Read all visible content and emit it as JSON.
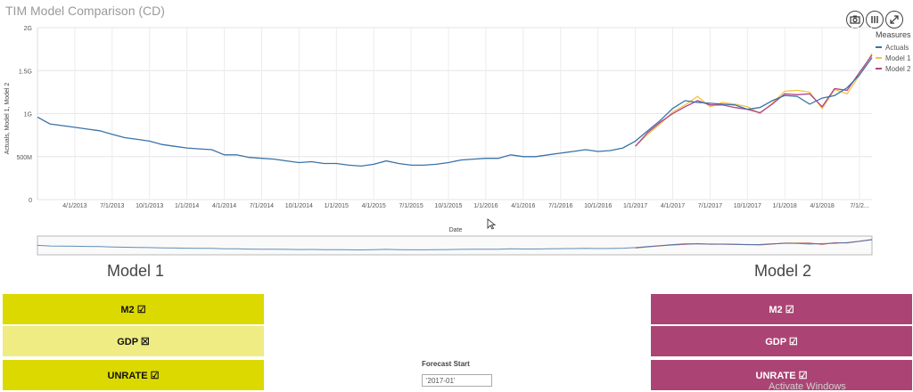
{
  "title": "TIM Model Comparison (CD)",
  "toolbar": {
    "icons": [
      "camera-icon",
      "columns-icon",
      "expand-icon"
    ]
  },
  "legend": {
    "title": "Measures",
    "items": [
      {
        "label": "Actuals",
        "color": "#3a73a8"
      },
      {
        "label": "Model 1",
        "color": "#f2c447"
      },
      {
        "label": "Model 2",
        "color": "#b0458a"
      }
    ]
  },
  "chart_data": {
    "type": "line",
    "title": "TIM Model Comparison (CD)",
    "xlabel": "Date",
    "ylabel": "Actuals, Model 1, Model 2",
    "ylim": [
      0,
      2000000000
    ],
    "yticks": [
      {
        "v": 0,
        "label": "0"
      },
      {
        "v": 500000000,
        "label": "500M"
      },
      {
        "v": 1000000000,
        "label": "1G"
      },
      {
        "v": 1500000000,
        "label": "1.5G"
      },
      {
        "v": 2000000000,
        "label": "2G"
      }
    ],
    "xticks": [
      "4/1/2013",
      "7/1/2013",
      "10/1/2013",
      "1/1/2014",
      "4/1/2014",
      "7/1/2014",
      "10/1/2014",
      "1/1/2015",
      "4/1/2015",
      "7/1/2015",
      "10/1/2015",
      "1/1/2016",
      "4/1/2016",
      "7/1/2016",
      "10/1/2016",
      "1/1/2017",
      "4/1/2017",
      "7/1/2017",
      "10/1/2017",
      "1/1/2018",
      "4/1/2018",
      "7/1/2..."
    ],
    "x": [
      "2013-01",
      "2013-02",
      "2013-03",
      "2013-04",
      "2013-05",
      "2013-06",
      "2013-07",
      "2013-08",
      "2013-09",
      "2013-10",
      "2013-11",
      "2013-12",
      "2014-01",
      "2014-02",
      "2014-03",
      "2014-04",
      "2014-05",
      "2014-06",
      "2014-07",
      "2014-08",
      "2014-09",
      "2014-10",
      "2014-11",
      "2014-12",
      "2015-01",
      "2015-02",
      "2015-03",
      "2015-04",
      "2015-05",
      "2015-06",
      "2015-07",
      "2015-08",
      "2015-09",
      "2015-10",
      "2015-11",
      "2015-12",
      "2016-01",
      "2016-02",
      "2016-03",
      "2016-04",
      "2016-05",
      "2016-06",
      "2016-07",
      "2016-08",
      "2016-09",
      "2016-10",
      "2016-11",
      "2016-12",
      "2017-01",
      "2017-02",
      "2017-03",
      "2017-04",
      "2017-05",
      "2017-06",
      "2017-07",
      "2017-08",
      "2017-09",
      "2017-10",
      "2017-11",
      "2017-12",
      "2018-01",
      "2018-02",
      "2018-03",
      "2018-04",
      "2018-05",
      "2018-06",
      "2018-07",
      "2018-08"
    ],
    "legend_position": "top-right",
    "grid": true,
    "series": [
      {
        "name": "Actuals",
        "color": "#3a73a8",
        "values": [
          960000000,
          880000000,
          860000000,
          840000000,
          820000000,
          800000000,
          760000000,
          720000000,
          700000000,
          680000000,
          640000000,
          620000000,
          600000000,
          590000000,
          580000000,
          520000000,
          520000000,
          490000000,
          480000000,
          470000000,
          450000000,
          430000000,
          440000000,
          420000000,
          420000000,
          400000000,
          390000000,
          410000000,
          450000000,
          420000000,
          400000000,
          400000000,
          410000000,
          430000000,
          460000000,
          470000000,
          480000000,
          480000000,
          520000000,
          500000000,
          500000000,
          520000000,
          540000000,
          560000000,
          580000000,
          560000000,
          570000000,
          600000000,
          680000000,
          800000000,
          920000000,
          1060000000,
          1150000000,
          1130000000,
          1120000000,
          1110000000,
          1100000000,
          1050000000,
          1070000000,
          1150000000,
          1210000000,
          1200000000,
          1110000000,
          1180000000,
          1210000000,
          1300000000,
          1450000000,
          1650000000
        ]
      },
      {
        "name": "Model 1",
        "color": "#f2c447",
        "values": [
          null,
          null,
          null,
          null,
          null,
          null,
          null,
          null,
          null,
          null,
          null,
          null,
          null,
          null,
          null,
          null,
          null,
          null,
          null,
          null,
          null,
          null,
          null,
          null,
          null,
          null,
          null,
          null,
          null,
          null,
          null,
          null,
          null,
          null,
          null,
          null,
          null,
          null,
          null,
          null,
          null,
          null,
          null,
          null,
          null,
          null,
          null,
          null,
          null,
          null,
          null,
          null,
          null,
          null,
          null,
          null,
          null,
          null,
          null,
          null,
          null,
          null,
          null,
          null,
          null,
          null,
          null,
          null
        ]
      },
      {
        "name": "Model 2",
        "color": "#b0458a",
        "values": [
          null,
          null,
          null,
          null,
          null,
          null,
          null,
          null,
          null,
          null,
          null,
          null,
          null,
          null,
          null,
          null,
          null,
          null,
          null,
          null,
          null,
          null,
          null,
          null,
          null,
          null,
          null,
          null,
          null,
          null,
          null,
          null,
          null,
          null,
          null,
          null,
          null,
          null,
          null,
          null,
          null,
          null,
          null,
          null,
          null,
          null,
          null,
          null,
          null,
          null,
          null,
          null,
          null,
          null,
          null,
          null,
          null,
          null,
          null,
          null,
          null,
          null,
          null,
          null,
          null,
          null,
          null,
          null
        ]
      }
    ]
  },
  "model1": {
    "label": "Model 1",
    "tiles": [
      "M2 ☑",
      "GDP ☒",
      "UNRATE ☑"
    ]
  },
  "model2": {
    "label": "Model 2",
    "tiles": [
      "M2 ☑",
      "GDP ☑",
      "UNRATE ☑"
    ]
  },
  "forecast": {
    "label": "Forecast Start",
    "value": "'2017-01'"
  },
  "watermark": "Activate Windows"
}
